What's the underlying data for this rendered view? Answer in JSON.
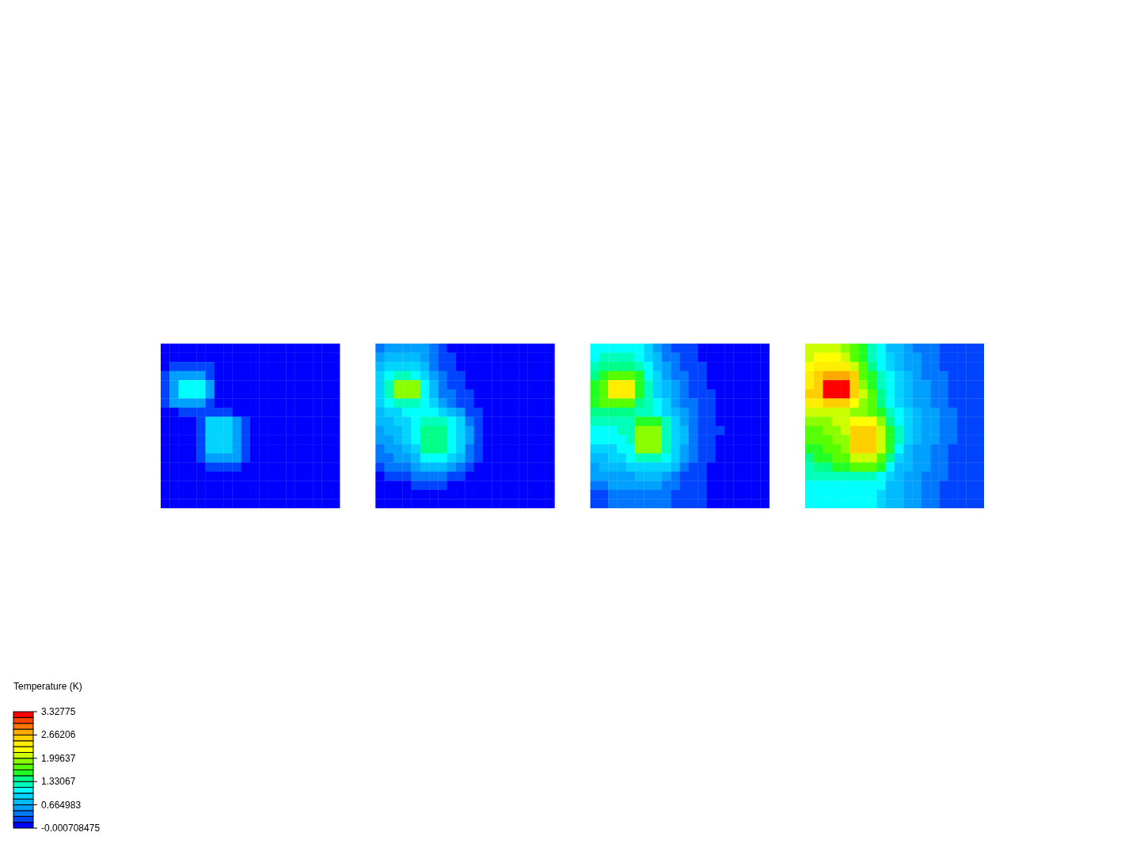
{
  "chart_data": {
    "type": "heatmap",
    "clabel": "Temperature (K)",
    "clim": [
      -0.000708475,
      3.32775
    ],
    "cticks": [
      -0.000708475,
      0.664983,
      1.33067,
      1.99637,
      2.66206,
      3.32775
    ],
    "categories": [
      null,
      null,
      null,
      null,
      null,
      null,
      null,
      null,
      null,
      null,
      null,
      null,
      null,
      null,
      null,
      null,
      null,
      null,
      null,
      null,
      null,
      null,
      null,
      null,
      null,
      null,
      null,
      null,
      null,
      null,
      null,
      null,
      null,
      null,
      null,
      null,
      null,
      null,
      null,
      null,
      null,
      null,
      null,
      null,
      null,
      null,
      null,
      null,
      null,
      null,
      null,
      null,
      null,
      null,
      null,
      null,
      null,
      null,
      null,
      null,
      null,
      null,
      null,
      null,
      null,
      null,
      null,
      null,
      null,
      null,
      null,
      null,
      null,
      null,
      null,
      null,
      null,
      null,
      null,
      null,
      null,
      null,
      null,
      null,
      null,
      null,
      null,
      null,
      null,
      null,
      null,
      null
    ],
    "y_categories": [
      null,
      null,
      null,
      null,
      null,
      null,
      null,
      null,
      null,
      null,
      null,
      null,
      null,
      null,
      null,
      null,
      null,
      null
    ],
    "cells": [
      [
        0.08,
        0.08,
        0.08,
        0.08,
        0.08,
        0.08,
        0.08,
        0.08,
        0.08,
        0.08,
        0.08,
        0.08,
        0.08,
        0.08,
        0.08,
        0.08,
        0.08,
        0.08,
        0.08,
        0.08,
        null,
        null,
        null,
        null,
        0.42,
        0.58,
        0.58,
        0.58,
        0.58,
        0.58,
        0.42,
        0.25,
        0.08,
        0.08,
        0.08,
        0.08,
        0.08,
        0.08,
        0.08,
        0.08,
        0.08,
        0.08,
        0.08,
        0.08,
        null,
        null,
        null,
        null,
        1.08,
        1.08,
        1.08,
        1.08,
        1.08,
        1.08,
        0.91,
        0.58,
        0.42,
        0.25,
        0.25,
        0.25,
        0.08,
        0.08,
        0.08,
        0.08,
        0.08,
        0.08,
        0.08,
        0.08,
        null,
        null,
        null,
        null,
        2.08,
        2.08,
        2.08,
        2.08,
        1.91,
        1.75,
        1.58,
        1.25,
        1.08,
        0.75,
        0.75,
        0.58,
        0.42,
        0.42,
        0.42,
        0.25,
        0.25,
        0.25,
        0.25,
        0.25
      ],
      [
        0.08,
        0.08,
        0.08,
        0.08,
        0.08,
        0.08,
        0.08,
        0.08,
        0.08,
        0.08,
        0.08,
        0.08,
        0.08,
        0.08,
        0.08,
        0.08,
        0.08,
        0.08,
        0.08,
        0.08,
        null,
        null,
        null,
        null,
        0.58,
        0.75,
        0.75,
        0.75,
        0.75,
        0.58,
        0.42,
        0.25,
        0.25,
        0.08,
        0.08,
        0.08,
        0.08,
        0.08,
        0.08,
        0.08,
        0.08,
        0.08,
        0.08,
        0.08,
        null,
        null,
        null,
        null,
        1.08,
        1.25,
        1.25,
        1.25,
        1.25,
        1.08,
        0.91,
        0.75,
        0.42,
        0.42,
        0.25,
        0.25,
        0.08,
        0.08,
        0.08,
        0.08,
        0.08,
        0.08,
        0.08,
        0.08,
        null,
        null,
        null,
        null,
        2.08,
        2.25,
        2.25,
        2.25,
        2.08,
        1.75,
        1.58,
        1.25,
        1.08,
        0.91,
        0.75,
        0.58,
        0.58,
        0.42,
        0.42,
        0.25,
        0.25,
        0.25,
        0.25,
        0.25
      ],
      [
        0.08,
        0.25,
        0.25,
        0.25,
        0.25,
        0.25,
        0.08,
        0.08,
        0.08,
        0.08,
        0.08,
        0.08,
        0.08,
        0.08,
        0.08,
        0.08,
        0.08,
        0.08,
        0.08,
        0.08,
        null,
        null,
        null,
        null,
        0.75,
        0.91,
        0.91,
        0.91,
        0.91,
        0.75,
        0.42,
        0.25,
        0.25,
        0.08,
        0.08,
        0.08,
        0.08,
        0.08,
        0.08,
        0.08,
        0.08,
        0.08,
        0.08,
        0.08,
        null,
        null,
        null,
        null,
        1.25,
        1.41,
        1.41,
        1.41,
        1.41,
        1.25,
        1.08,
        0.75,
        0.58,
        0.42,
        0.25,
        0.25,
        0.25,
        0.08,
        0.08,
        0.08,
        0.08,
        0.08,
        0.08,
        0.08,
        null,
        null,
        null,
        null,
        2.25,
        2.41,
        2.41,
        2.41,
        2.41,
        2.08,
        1.75,
        1.41,
        1.08,
        0.91,
        0.75,
        0.58,
        0.58,
        0.42,
        0.42,
        0.25,
        0.25,
        0.25,
        0.25,
        0.25
      ],
      [
        0.25,
        0.58,
        0.58,
        0.58,
        0.58,
        0.25,
        0.08,
        0.08,
        0.08,
        0.08,
        0.08,
        0.08,
        0.08,
        0.08,
        0.08,
        0.08,
        0.08,
        0.08,
        0.08,
        0.08,
        null,
        null,
        null,
        null,
        0.91,
        1.08,
        1.25,
        1.25,
        1.08,
        0.91,
        0.58,
        0.42,
        0.25,
        0.25,
        0.08,
        0.08,
        0.08,
        0.08,
        0.08,
        0.08,
        0.08,
        0.08,
        0.08,
        0.08,
        null,
        null,
        null,
        null,
        1.41,
        1.58,
        1.75,
        1.75,
        1.75,
        1.58,
        1.08,
        0.91,
        0.58,
        0.42,
        0.42,
        0.25,
        0.25,
        0.08,
        0.08,
        0.08,
        0.08,
        0.08,
        0.08,
        0.08,
        null,
        null,
        null,
        null,
        2.41,
        2.58,
        2.75,
        2.75,
        2.75,
        2.58,
        1.75,
        1.58,
        1.25,
        1.08,
        0.91,
        0.75,
        0.58,
        0.42,
        0.42,
        0.42,
        0.25,
        0.25,
        0.25,
        0.25
      ],
      [
        0.25,
        0.58,
        1.08,
        1.08,
        1.08,
        0.58,
        0.08,
        0.08,
        0.08,
        0.08,
        0.08,
        0.08,
        0.08,
        0.08,
        0.08,
        0.08,
        0.08,
        0.08,
        0.08,
        0.08,
        null,
        null,
        null,
        null,
        0.91,
        1.25,
        1.91,
        1.91,
        1.91,
        1.08,
        0.75,
        0.42,
        0.25,
        0.25,
        0.08,
        0.08,
        0.08,
        0.08,
        0.08,
        0.08,
        0.08,
        0.08,
        0.08,
        0.08,
        null,
        null,
        null,
        null,
        1.58,
        1.75,
        2.41,
        2.41,
        2.41,
        1.58,
        1.25,
        0.91,
        0.75,
        0.58,
        0.42,
        0.25,
        0.25,
        0.08,
        0.08,
        0.08,
        0.08,
        0.08,
        0.08,
        0.08,
        null,
        null,
        null,
        null,
        2.41,
        2.58,
        3.24,
        3.24,
        3.24,
        2.58,
        1.91,
        1.58,
        1.25,
        1.08,
        0.91,
        0.75,
        0.58,
        0.58,
        0.42,
        0.42,
        0.25,
        0.25,
        0.25,
        0.25
      ],
      [
        0.25,
        0.58,
        1.08,
        1.08,
        1.08,
        0.58,
        0.08,
        0.08,
        0.08,
        0.08,
        0.08,
        0.08,
        0.08,
        0.08,
        0.08,
        0.08,
        0.08,
        0.08,
        0.08,
        0.08,
        null,
        null,
        null,
        null,
        0.91,
        1.25,
        1.91,
        1.91,
        1.91,
        1.08,
        0.75,
        0.42,
        0.42,
        0.25,
        0.25,
        0.08,
        0.08,
        0.08,
        0.08,
        0.08,
        0.08,
        0.08,
        0.08,
        0.08,
        null,
        null,
        null,
        null,
        1.58,
        1.75,
        2.41,
        2.41,
        2.41,
        1.58,
        1.25,
        0.91,
        0.75,
        0.58,
        0.42,
        0.25,
        0.25,
        0.25,
        0.08,
        0.08,
        0.08,
        0.08,
        0.08,
        0.08,
        null,
        null,
        null,
        null,
        2.58,
        2.58,
        3.24,
        3.24,
        3.24,
        2.58,
        2.08,
        1.75,
        1.41,
        1.08,
        0.91,
        0.75,
        0.58,
        0.58,
        0.42,
        0.42,
        0.25,
        0.25,
        0.25,
        0.25
      ],
      [
        0.25,
        0.58,
        0.58,
        0.58,
        0.58,
        0.25,
        0.08,
        0.08,
        0.08,
        0.08,
        0.08,
        0.08,
        0.08,
        0.08,
        0.08,
        0.08,
        0.08,
        0.08,
        0.08,
        0.08,
        null,
        null,
        null,
        null,
        0.91,
        1.08,
        1.25,
        1.25,
        1.25,
        1.08,
        0.91,
        0.58,
        0.42,
        0.25,
        0.25,
        0.08,
        0.08,
        0.08,
        0.08,
        0.08,
        0.08,
        0.08,
        0.08,
        0.08,
        null,
        null,
        null,
        null,
        1.58,
        1.75,
        1.75,
        1.75,
        1.75,
        1.41,
        1.25,
        1.08,
        0.91,
        0.58,
        0.42,
        0.42,
        0.25,
        0.25,
        0.08,
        0.08,
        0.08,
        0.08,
        0.08,
        0.08,
        null,
        null,
        null,
        null,
        2.41,
        2.41,
        2.58,
        2.58,
        2.58,
        2.25,
        1.91,
        1.75,
        1.41,
        1.08,
        0.91,
        0.75,
        0.58,
        0.58,
        0.42,
        0.42,
        0.25,
        0.25,
        0.25,
        0.25
      ],
      [
        0.08,
        0.08,
        0.25,
        0.25,
        0.25,
        0.25,
        0.25,
        0.25,
        0.08,
        0.08,
        0.08,
        0.08,
        0.08,
        0.08,
        0.08,
        0.08,
        0.08,
        0.08,
        0.08,
        0.08,
        null,
        null,
        null,
        null,
        0.75,
        0.91,
        0.91,
        1.08,
        1.08,
        1.08,
        1.08,
        0.91,
        0.75,
        0.58,
        0.25,
        0.25,
        0.08,
        0.08,
        0.08,
        0.08,
        0.08,
        0.08,
        0.08,
        0.08,
        null,
        null,
        null,
        null,
        1.41,
        1.41,
        1.41,
        1.41,
        1.41,
        1.25,
        1.25,
        1.08,
        0.91,
        0.75,
        0.58,
        0.42,
        0.25,
        0.25,
        0.08,
        0.08,
        0.08,
        0.08,
        0.08,
        0.08,
        null,
        null,
        null,
        null,
        2.08,
        2.08,
        2.08,
        2.08,
        2.08,
        1.91,
        1.91,
        1.75,
        1.58,
        1.25,
        1.08,
        0.91,
        0.75,
        0.58,
        0.58,
        0.42,
        0.42,
        0.25,
        0.25,
        0.25
      ],
      [
        0.08,
        0.08,
        0.08,
        0.08,
        0.25,
        0.91,
        0.91,
        0.91,
        0.58,
        0.25,
        0.08,
        0.08,
        0.08,
        0.08,
        0.08,
        0.08,
        0.08,
        0.08,
        0.08,
        0.08,
        null,
        null,
        null,
        null,
        0.75,
        0.75,
        0.91,
        0.91,
        1.08,
        1.25,
        1.25,
        1.25,
        1.08,
        0.91,
        0.42,
        0.25,
        0.08,
        0.08,
        0.08,
        0.08,
        0.08,
        0.08,
        0.08,
        0.08,
        null,
        null,
        null,
        null,
        1.25,
        1.25,
        1.25,
        1.25,
        1.25,
        1.58,
        1.58,
        1.58,
        1.25,
        0.91,
        0.58,
        0.42,
        0.25,
        0.25,
        0.08,
        0.08,
        0.08,
        0.08,
        0.08,
        0.08,
        null,
        null,
        null,
        null,
        1.91,
        1.91,
        1.91,
        2.08,
        2.08,
        2.25,
        2.25,
        2.25,
        1.91,
        1.41,
        1.08,
        0.91,
        0.75,
        0.58,
        0.58,
        0.42,
        0.42,
        0.25,
        0.25,
        0.25
      ],
      [
        0.08,
        0.08,
        0.08,
        0.08,
        0.25,
        0.91,
        0.91,
        0.91,
        0.58,
        0.25,
        0.08,
        0.08,
        0.08,
        0.08,
        0.08,
        0.08,
        0.08,
        0.08,
        0.08,
        0.08,
        null,
        null,
        null,
        null,
        0.58,
        0.75,
        0.75,
        0.91,
        1.08,
        1.41,
        1.41,
        1.41,
        1.08,
        0.91,
        0.58,
        0.25,
        0.08,
        0.08,
        0.08,
        0.08,
        0.08,
        0.08,
        0.08,
        0.08,
        null,
        null,
        null,
        null,
        1.08,
        1.08,
        1.08,
        1.25,
        1.25,
        1.91,
        1.91,
        1.91,
        1.25,
        0.91,
        0.75,
        0.42,
        0.25,
        0.25,
        0.25,
        0.08,
        0.08,
        0.08,
        0.08,
        0.08,
        null,
        null,
        null,
        null,
        1.75,
        1.75,
        1.91,
        1.91,
        2.08,
        2.58,
        2.58,
        2.58,
        2.08,
        1.58,
        1.25,
        0.91,
        0.75,
        0.58,
        0.58,
        0.42,
        0.42,
        0.25,
        0.25,
        0.25
      ],
      [
        0.08,
        0.08,
        0.08,
        0.08,
        0.25,
        0.91,
        0.91,
        0.91,
        0.58,
        0.25,
        0.08,
        0.08,
        0.08,
        0.08,
        0.08,
        0.08,
        0.08,
        0.08,
        0.08,
        0.08,
        null,
        null,
        null,
        null,
        0.58,
        0.58,
        0.75,
        0.91,
        1.08,
        1.41,
        1.41,
        1.41,
        1.08,
        0.91,
        0.58,
        0.25,
        0.08,
        0.08,
        0.08,
        0.08,
        0.08,
        0.08,
        0.08,
        0.08,
        null,
        null,
        null,
        null,
        1.08,
        1.08,
        1.08,
        1.08,
        1.25,
        1.91,
        1.91,
        1.91,
        1.25,
        0.91,
        0.75,
        0.42,
        0.25,
        0.25,
        0.08,
        0.08,
        0.08,
        0.08,
        0.08,
        0.08,
        null,
        null,
        null,
        null,
        1.75,
        1.75,
        1.75,
        1.91,
        1.91,
        2.58,
        2.58,
        2.58,
        2.08,
        1.58,
        1.25,
        0.91,
        0.75,
        0.58,
        0.58,
        0.42,
        0.42,
        0.25,
        0.25,
        0.25
      ],
      [
        0.08,
        0.08,
        0.08,
        0.08,
        0.25,
        0.91,
        0.91,
        0.91,
        0.58,
        0.25,
        0.08,
        0.08,
        0.08,
        0.08,
        0.08,
        0.08,
        0.08,
        0.08,
        0.08,
        0.08,
        null,
        null,
        null,
        null,
        0.42,
        0.58,
        0.58,
        0.75,
        0.91,
        1.41,
        1.41,
        1.41,
        1.08,
        0.91,
        0.42,
        0.25,
        0.08,
        0.08,
        0.08,
        0.08,
        0.08,
        0.08,
        0.08,
        0.08,
        null,
        null,
        null,
        null,
        0.91,
        0.91,
        0.91,
        1.08,
        1.08,
        1.91,
        1.91,
        1.91,
        1.25,
        0.91,
        0.58,
        0.42,
        0.25,
        0.25,
        0.08,
        0.08,
        0.08,
        0.08,
        0.08,
        0.08,
        null,
        null,
        null,
        null,
        1.58,
        1.58,
        1.75,
        1.75,
        1.91,
        2.58,
        2.58,
        2.58,
        2.08,
        1.58,
        1.08,
        0.75,
        0.58,
        0.58,
        0.42,
        0.42,
        0.25,
        0.25,
        0.25,
        0.25
      ],
      [
        0.08,
        0.08,
        0.08,
        0.08,
        0.25,
        0.58,
        0.58,
        0.58,
        0.58,
        0.25,
        0.08,
        0.08,
        0.08,
        0.08,
        0.08,
        0.08,
        0.08,
        0.08,
        0.08,
        0.08,
        null,
        null,
        null,
        null,
        0.42,
        0.42,
        0.58,
        0.58,
        0.75,
        1.08,
        1.08,
        1.08,
        0.91,
        0.75,
        0.42,
        0.25,
        0.08,
        0.08,
        0.08,
        0.08,
        0.08,
        0.08,
        0.08,
        0.08,
        null,
        null,
        null,
        null,
        0.75,
        0.75,
        0.91,
        0.91,
        1.08,
        1.25,
        1.25,
        1.25,
        1.08,
        0.91,
        0.58,
        0.42,
        0.25,
        0.25,
        0.08,
        0.08,
        0.08,
        0.08,
        0.08,
        0.08,
        null,
        null,
        null,
        null,
        1.41,
        1.58,
        1.58,
        1.75,
        1.75,
        2.08,
        2.08,
        2.08,
        1.75,
        1.41,
        0.91,
        0.75,
        0.58,
        0.58,
        0.42,
        0.42,
        0.25,
        0.25,
        0.25,
        0.25
      ],
      [
        0.08,
        0.08,
        0.08,
        0.08,
        0.08,
        0.25,
        0.25,
        0.25,
        0.25,
        0.08,
        0.08,
        0.08,
        0.08,
        0.08,
        0.08,
        0.08,
        0.08,
        0.08,
        0.08,
        0.08,
        null,
        null,
        null,
        null,
        0.25,
        0.42,
        0.42,
        0.42,
        0.58,
        0.75,
        0.75,
        0.75,
        0.58,
        0.42,
        0.25,
        0.08,
        0.08,
        0.08,
        0.08,
        0.08,
        0.08,
        0.08,
        0.08,
        0.08,
        null,
        null,
        null,
        null,
        0.58,
        0.75,
        0.75,
        0.75,
        0.91,
        0.91,
        0.91,
        0.91,
        0.91,
        0.75,
        0.42,
        0.25,
        0.25,
        0.08,
        0.08,
        0.08,
        0.08,
        0.08,
        0.08,
        0.08,
        null,
        null,
        null,
        null,
        1.25,
        1.41,
        1.41,
        1.58,
        1.58,
        1.75,
        1.75,
        1.75,
        1.58,
        1.08,
        0.75,
        0.75,
        0.58,
        0.58,
        0.42,
        0.42,
        0.25,
        0.25,
        0.25,
        0.25
      ],
      [
        0.08,
        0.08,
        0.08,
        0.08,
        0.08,
        0.08,
        0.08,
        0.08,
        0.08,
        0.08,
        0.08,
        0.08,
        0.08,
        0.08,
        0.08,
        0.08,
        0.08,
        0.08,
        0.08,
        0.08,
        null,
        null,
        null,
        null,
        0.08,
        0.25,
        0.25,
        0.25,
        0.42,
        0.42,
        0.42,
        0.42,
        0.25,
        0.25,
        0.08,
        0.08,
        0.08,
        0.08,
        0.08,
        0.08,
        0.08,
        0.08,
        0.08,
        0.08,
        null,
        null,
        null,
        null,
        0.58,
        0.58,
        0.58,
        0.58,
        0.58,
        0.75,
        0.75,
        0.75,
        0.58,
        0.42,
        0.25,
        0.25,
        0.25,
        0.08,
        0.08,
        0.08,
        0.08,
        0.08,
        0.08,
        0.08,
        null,
        null,
        null,
        null,
        1.25,
        1.25,
        1.25,
        1.25,
        1.25,
        1.25,
        1.25,
        1.25,
        1.08,
        0.91,
        0.75,
        0.58,
        0.58,
        0.42,
        0.42,
        0.42,
        0.25,
        0.25,
        0.25,
        0.25
      ],
      [
        0.08,
        0.08,
        0.08,
        0.08,
        0.08,
        0.08,
        0.08,
        0.08,
        0.08,
        0.08,
        0.08,
        0.08,
        0.08,
        0.08,
        0.08,
        0.08,
        0.08,
        0.08,
        0.08,
        0.08,
        null,
        null,
        null,
        null,
        0.08,
        0.08,
        0.08,
        0.08,
        0.25,
        0.25,
        0.25,
        0.25,
        0.08,
        0.08,
        0.08,
        0.08,
        0.08,
        0.08,
        0.08,
        0.08,
        0.08,
        0.08,
        0.08,
        0.08,
        null,
        null,
        null,
        null,
        0.42,
        0.42,
        0.58,
        0.58,
        0.58,
        0.58,
        0.58,
        0.58,
        0.42,
        0.42,
        0.25,
        0.25,
        0.25,
        0.08,
        0.08,
        0.08,
        0.08,
        0.08,
        0.08,
        0.08,
        null,
        null,
        null,
        null,
        1.08,
        1.08,
        1.08,
        1.08,
        1.08,
        1.08,
        1.08,
        1.08,
        1.08,
        0.75,
        0.75,
        0.58,
        0.58,
        0.42,
        0.42,
        0.25,
        0.25,
        0.25,
        0.25,
        0.25
      ],
      [
        0.08,
        0.08,
        0.08,
        0.08,
        0.08,
        0.08,
        0.08,
        0.08,
        0.08,
        0.08,
        0.08,
        0.08,
        0.08,
        0.08,
        0.08,
        0.08,
        0.08,
        0.08,
        0.08,
        0.08,
        null,
        null,
        null,
        null,
        0.08,
        0.08,
        0.08,
        0.08,
        0.08,
        0.08,
        0.08,
        0.08,
        0.08,
        0.08,
        0.08,
        0.08,
        0.08,
        0.08,
        0.08,
        0.08,
        0.08,
        0.08,
        0.08,
        0.08,
        null,
        null,
        null,
        null,
        0.25,
        0.25,
        0.42,
        0.42,
        0.42,
        0.42,
        0.42,
        0.42,
        0.42,
        0.25,
        0.25,
        0.25,
        0.25,
        0.08,
        0.08,
        0.08,
        0.08,
        0.08,
        0.08,
        0.08,
        null,
        null,
        null,
        null,
        1.08,
        1.08,
        1.08,
        1.08,
        1.08,
        1.08,
        1.08,
        1.08,
        0.91,
        0.75,
        0.75,
        0.58,
        0.58,
        0.42,
        0.42,
        0.25,
        0.25,
        0.25,
        0.25,
        0.25
      ],
      [
        0.08,
        0.08,
        0.08,
        0.08,
        0.08,
        0.08,
        0.08,
        0.08,
        0.08,
        0.08,
        0.08,
        0.08,
        0.08,
        0.08,
        0.08,
        0.08,
        0.08,
        0.08,
        0.08,
        0.08,
        null,
        null,
        null,
        null,
        0.08,
        0.08,
        0.08,
        0.08,
        0.08,
        0.08,
        0.08,
        0.08,
        0.08,
        0.08,
        0.08,
        0.08,
        0.08,
        0.08,
        0.08,
        0.08,
        0.08,
        0.08,
        0.08,
        0.08,
        null,
        null,
        null,
        null,
        0.25,
        0.25,
        0.42,
        0.42,
        0.42,
        0.42,
        0.42,
        0.42,
        0.42,
        0.25,
        0.25,
        0.25,
        0.25,
        0.08,
        0.08,
        0.08,
        0.08,
        0.08,
        0.08,
        0.08,
        null,
        null,
        null,
        null,
        1.08,
        1.08,
        1.08,
        1.08,
        1.08,
        1.08,
        1.08,
        1.08,
        0.91,
        0.75,
        0.75,
        0.58,
        0.58,
        0.42,
        0.42,
        0.25,
        0.25,
        0.25,
        0.25,
        0.25
      ]
    ]
  }
}
